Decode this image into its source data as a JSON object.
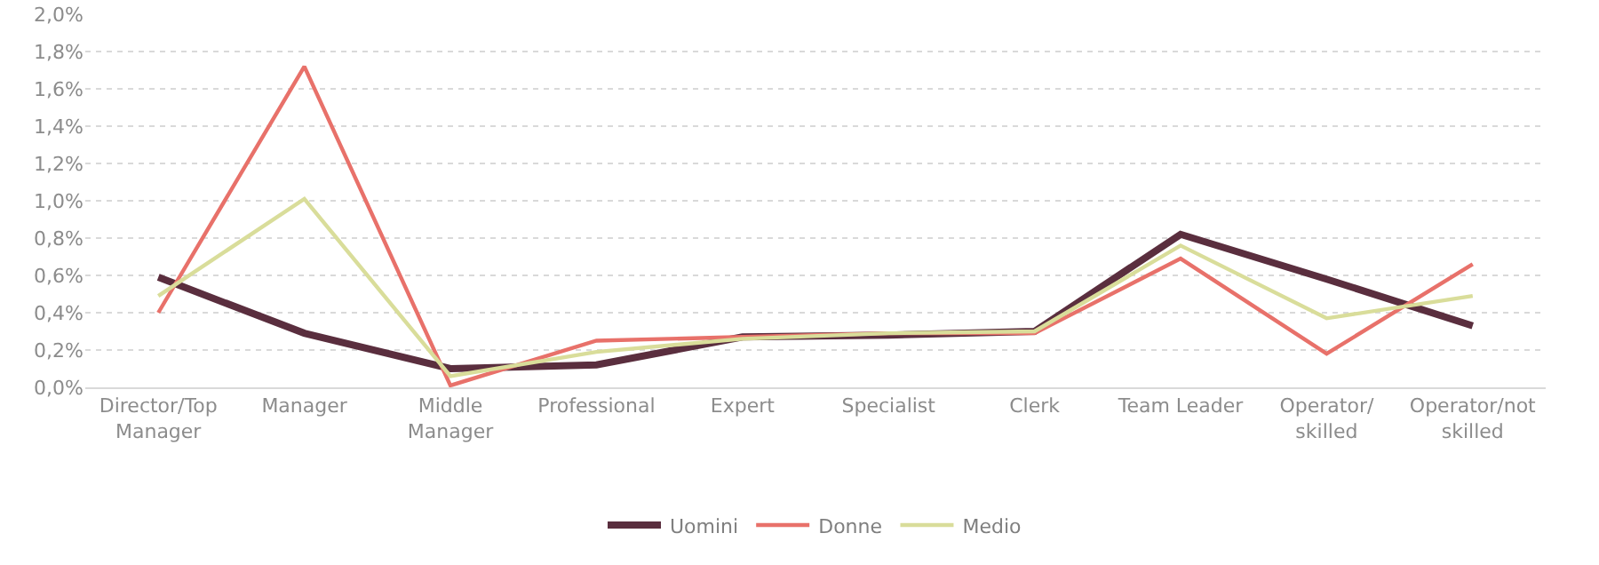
{
  "chart_data": {
    "type": "line",
    "categories": [
      "Director/Top Manager",
      "Manager",
      "Middle Manager",
      "Professional",
      "Expert",
      "Specialist",
      "Clerk",
      "Team Leader",
      "Operator/ skilled",
      "Operator/not skilled"
    ],
    "series": [
      {
        "name": "Uomini",
        "color": "#5a2e3e",
        "values": [
          0.59,
          0.29,
          0.1,
          0.12,
          0.27,
          0.28,
          0.3,
          0.82,
          0.58,
          0.33
        ]
      },
      {
        "name": "Donne",
        "color": "#e8716a",
        "values": [
          0.4,
          1.72,
          0.01,
          0.25,
          0.27,
          0.29,
          0.29,
          0.69,
          0.18,
          0.66
        ]
      },
      {
        "name": "Medio",
        "color": "#d9dd9a",
        "values": [
          0.49,
          1.01,
          0.06,
          0.19,
          0.26,
          0.29,
          0.3,
          0.76,
          0.37,
          0.49
        ]
      }
    ],
    "ylim": [
      0,
      2.0
    ],
    "yticks": [
      {
        "value": 0,
        "label": "0,0%"
      },
      {
        "value": 0.2,
        "label": "0,2%"
      },
      {
        "value": 0.4,
        "label": "0,4%"
      },
      {
        "value": 0.6,
        "label": "0,6%"
      },
      {
        "value": 0.8,
        "label": "0,8%"
      },
      {
        "value": 1.0,
        "label": "1,0%"
      },
      {
        "value": 1.2,
        "label": "1,2%"
      },
      {
        "value": 1.4,
        "label": "1,4%"
      },
      {
        "value": 1.6,
        "label": "1,6%"
      },
      {
        "value": 1.8,
        "label": "1,8%"
      },
      {
        "value": 2.0,
        "label": "2,0%"
      }
    ],
    "grid": "y",
    "legend": "bottom",
    "marker": "none",
    "line_style": "solid"
  }
}
